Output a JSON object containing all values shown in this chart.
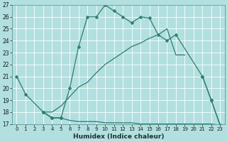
{
  "xlabel": "Humidex (Indice chaleur)",
  "x_ticks": [
    0,
    1,
    2,
    3,
    4,
    5,
    6,
    7,
    8,
    9,
    10,
    11,
    12,
    13,
    14,
    15,
    16,
    17,
    18,
    19,
    20,
    21,
    22,
    23
  ],
  "ylim": [
    17,
    27
  ],
  "xlim": [
    -0.5,
    23.5
  ],
  "background_color": "#b2dfdf",
  "grid_color": "#d0f0f0",
  "line_color": "#2e7d6e",
  "series_main": {
    "x": [
      3,
      4,
      5,
      6,
      7,
      8,
      9,
      10,
      11,
      12,
      13,
      14,
      15,
      16,
      17,
      18,
      21,
      22,
      23
    ],
    "y": [
      18,
      17.5,
      17.5,
      20,
      23.5,
      26.0,
      26.0,
      27.0,
      26.5,
      26.0,
      25.5,
      26.0,
      25.9,
      24.5,
      24.0,
      24.5,
      21.0,
      19.0,
      16.9
    ]
  },
  "series_rise": {
    "x": [
      3,
      4,
      5,
      6,
      7,
      8,
      9,
      10,
      11,
      12,
      13,
      14,
      15,
      16,
      17,
      18,
      19
    ],
    "y": [
      18.0,
      18.0,
      18.5,
      19.3,
      20.1,
      20.5,
      21.3,
      22.0,
      22.5,
      23.0,
      23.5,
      23.8,
      24.2,
      24.5,
      25.0,
      22.8,
      22.8
    ]
  },
  "series_flat": {
    "x": [
      3,
      4,
      5,
      6,
      7,
      8,
      9,
      10,
      11,
      12,
      13,
      14,
      15,
      16,
      17,
      18,
      19,
      20,
      22,
      23
    ],
    "y": [
      18.0,
      17.5,
      17.5,
      17.3,
      17.2,
      17.2,
      17.2,
      17.1,
      17.1,
      17.1,
      17.1,
      17.0,
      17.0,
      17.0,
      17.0,
      17.0,
      17.0,
      17.0,
      17.0,
      16.9
    ]
  },
  "series_diag": {
    "x": [
      0,
      1,
      3,
      4,
      5,
      21,
      22,
      23
    ],
    "y": [
      21.0,
      19.5,
      18.0,
      17.5,
      17.5,
      21.0,
      19.0,
      16.9
    ]
  }
}
